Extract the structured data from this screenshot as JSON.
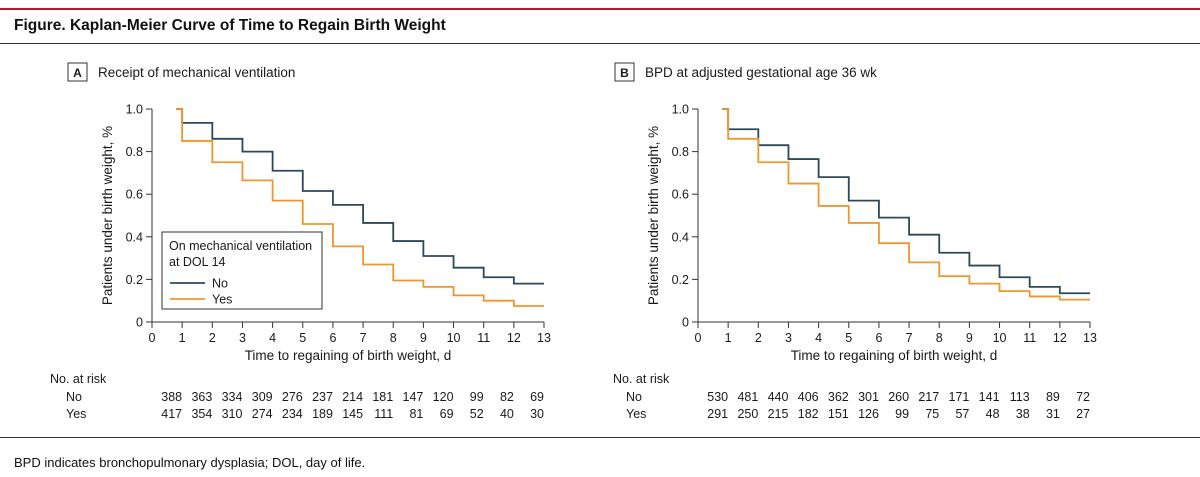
{
  "figure_title": "Figure. Kaplan-Meier Curve of Time to Regain Birth Weight",
  "footnote": "BPD indicates bronchopulmonary dysplasia; DOL, day of life.",
  "colors": {
    "no": "#2f4858",
    "yes": "#f0962e",
    "title_rule": "#c8102e"
  },
  "chart_data": [
    {
      "type": "line",
      "panel_letter": "A",
      "title": "Receipt of mechanical ventilation",
      "xlabel": "Time to regaining of birth weight, d",
      "ylabel": "Patients under birth weight, %",
      "xlim": [
        0,
        13
      ],
      "ylim": [
        0,
        1.0
      ],
      "xticks": [
        0,
        1,
        2,
        3,
        4,
        5,
        6,
        7,
        8,
        9,
        10,
        11,
        12,
        13
      ],
      "yticks": [
        0,
        0.2,
        0.4,
        0.6,
        0.8,
        1.0
      ],
      "ytick_labels": [
        "0",
        "0.2",
        "0.4",
        "0.6",
        "0.8",
        "1.0"
      ],
      "legend": {
        "title_line1": "On mechanical ventilation",
        "title_line2": "at DOL 14",
        "placement": "lower-left"
      },
      "series": [
        {
          "name": "No",
          "color": "#2f4858",
          "x": [
            0.8,
            1,
            2,
            3,
            4,
            5,
            6,
            7,
            8,
            9,
            10,
            11,
            12,
            13
          ],
          "y": [
            1.0,
            0.935,
            0.86,
            0.8,
            0.71,
            0.615,
            0.55,
            0.465,
            0.38,
            0.31,
            0.255,
            0.21,
            0.18,
            0.18
          ]
        },
        {
          "name": "Yes",
          "color": "#f0962e",
          "x": [
            0.8,
            1,
            2,
            3,
            4,
            5,
            6,
            7,
            8,
            9,
            10,
            11,
            12,
            13
          ],
          "y": [
            1.0,
            0.85,
            0.75,
            0.665,
            0.57,
            0.46,
            0.355,
            0.27,
            0.195,
            0.165,
            0.125,
            0.1,
            0.075,
            0.075
          ]
        }
      ],
      "at_risk": {
        "header": "No. at risk",
        "rows": [
          {
            "label": "No",
            "values": [
              388,
              363,
              334,
              309,
              276,
              237,
              214,
              181,
              147,
              120,
              99,
              82,
              69
            ]
          },
          {
            "label": "Yes",
            "values": [
              417,
              354,
              310,
              274,
              234,
              189,
              145,
              111,
              81,
              69,
              52,
              40,
              30
            ]
          }
        ]
      }
    },
    {
      "type": "line",
      "panel_letter": "B",
      "title": "BPD at adjusted gestational age 36 wk",
      "xlabel": "Time to regaining of birth weight, d",
      "ylabel": "Patients under birth weight, %",
      "xlim": [
        0,
        13
      ],
      "ylim": [
        0,
        1.0
      ],
      "xticks": [
        0,
        1,
        2,
        3,
        4,
        5,
        6,
        7,
        8,
        9,
        10,
        11,
        12,
        13
      ],
      "yticks": [
        0,
        0.2,
        0.4,
        0.6,
        0.8,
        1.0
      ],
      "ytick_labels": [
        "0",
        "0.2",
        "0.4",
        "0.6",
        "0.8",
        "1.0"
      ],
      "series": [
        {
          "name": "No",
          "color": "#2f4858",
          "x": [
            0.8,
            1,
            2,
            3,
            4,
            5,
            6,
            7,
            8,
            9,
            10,
            11,
            12,
            13
          ],
          "y": [
            1.0,
            0.905,
            0.83,
            0.765,
            0.68,
            0.57,
            0.49,
            0.41,
            0.325,
            0.265,
            0.21,
            0.165,
            0.135,
            0.135
          ]
        },
        {
          "name": "Yes",
          "color": "#f0962e",
          "x": [
            0.8,
            1,
            2,
            3,
            4,
            5,
            6,
            7,
            8,
            9,
            10,
            11,
            12,
            13
          ],
          "y": [
            1.0,
            0.86,
            0.75,
            0.65,
            0.545,
            0.465,
            0.37,
            0.28,
            0.215,
            0.18,
            0.145,
            0.12,
            0.105,
            0.105
          ]
        }
      ],
      "at_risk": {
        "header": "No. at risk",
        "rows": [
          {
            "label": "No",
            "values": [
              530,
              481,
              440,
              406,
              362,
              301,
              260,
              217,
              171,
              141,
              113,
              89,
              72
            ]
          },
          {
            "label": "Yes",
            "values": [
              291,
              250,
              215,
              182,
              151,
              126,
              99,
              75,
              57,
              48,
              38,
              31,
              27
            ]
          }
        ]
      }
    }
  ]
}
